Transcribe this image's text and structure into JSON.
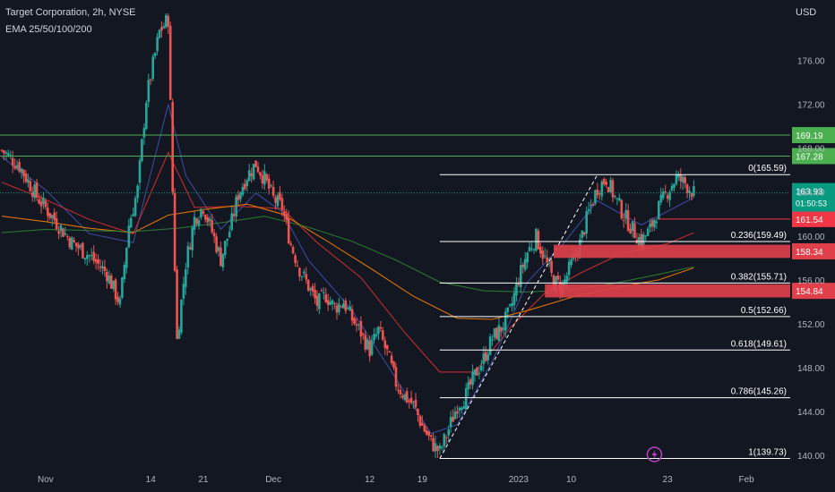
{
  "header": {
    "title": "Target Corporation, 2h, NYSE",
    "indicator": "EMA 25/50/100/200",
    "currency": "USD"
  },
  "chart_data": {
    "type": "candlestick",
    "y_ticks": [
      "176.00",
      "172.00",
      "168.00",
      "164.00",
      "160.00",
      "156.00",
      "152.00",
      "148.00",
      "144.00",
      "140.00"
    ],
    "ylim": [
      139.2,
      181.5
    ],
    "x_ticks": [
      {
        "label": "Nov",
        "t": 10
      },
      {
        "label": "14",
        "t": 34
      },
      {
        "label": "21",
        "t": 46
      },
      {
        "label": "Dec",
        "t": 62
      },
      {
        "label": "12",
        "t": 84
      },
      {
        "label": "19",
        "t": 96
      },
      {
        "label": "2023",
        "t": 118
      },
      {
        "label": "10",
        "t": 130
      },
      {
        "label": "23",
        "t": 152
      },
      {
        "label": "Feb",
        "t": 170
      }
    ],
    "ohlc_key_closes": [
      {
        "t": 0,
        "price": 167.8
      },
      {
        "t": 4,
        "price": 166.4
      },
      {
        "t": 8,
        "price": 163.6
      },
      {
        "t": 12,
        "price": 161.5
      },
      {
        "t": 16,
        "price": 159.4
      },
      {
        "t": 20,
        "price": 158.2
      },
      {
        "t": 24,
        "price": 156.6
      },
      {
        "t": 27,
        "price": 153.8
      },
      {
        "t": 29,
        "price": 161.0
      },
      {
        "t": 31,
        "price": 164.2
      },
      {
        "t": 33,
        "price": 172.5
      },
      {
        "t": 34,
        "price": 174.6
      },
      {
        "t": 36,
        "price": 178.6
      },
      {
        "t": 38,
        "price": 179.8
      },
      {
        "t": 39,
        "price": 164.0
      },
      {
        "t": 40,
        "price": 150.5
      },
      {
        "t": 42,
        "price": 157.5
      },
      {
        "t": 44,
        "price": 161.6
      },
      {
        "t": 46,
        "price": 162.7
      },
      {
        "t": 48,
        "price": 160.4
      },
      {
        "t": 50,
        "price": 157.9
      },
      {
        "t": 52,
        "price": 160.5
      },
      {
        "t": 54,
        "price": 163.8
      },
      {
        "t": 56,
        "price": 165.5
      },
      {
        "t": 58,
        "price": 166.6
      },
      {
        "t": 60,
        "price": 165.2
      },
      {
        "t": 62,
        "price": 163.4
      },
      {
        "t": 64,
        "price": 162.6
      },
      {
        "t": 66,
        "price": 159.2
      },
      {
        "t": 68,
        "price": 157.0
      },
      {
        "t": 70,
        "price": 155.4
      },
      {
        "t": 72,
        "price": 153.8
      },
      {
        "t": 74,
        "price": 154.6
      },
      {
        "t": 76,
        "price": 153.5
      },
      {
        "t": 78,
        "price": 154.0
      },
      {
        "t": 80,
        "price": 152.4
      },
      {
        "t": 82,
        "price": 151.2
      },
      {
        "t": 84,
        "price": 149.6
      },
      {
        "t": 86,
        "price": 151.4
      },
      {
        "t": 88,
        "price": 149.3
      },
      {
        "t": 90,
        "price": 146.6
      },
      {
        "t": 92,
        "price": 145.4
      },
      {
        "t": 94,
        "price": 144.6
      },
      {
        "t": 96,
        "price": 142.7
      },
      {
        "t": 98,
        "price": 141.2
      },
      {
        "t": 100,
        "price": 140.3
      },
      {
        "t": 102,
        "price": 142.4
      },
      {
        "t": 104,
        "price": 144.6
      },
      {
        "t": 106,
        "price": 145.5
      },
      {
        "t": 108,
        "price": 147.3
      },
      {
        "t": 110,
        "price": 148.8
      },
      {
        "t": 112,
        "price": 150.7
      },
      {
        "t": 114,
        "price": 151.6
      },
      {
        "t": 116,
        "price": 153.1
      },
      {
        "t": 118,
        "price": 156.1
      },
      {
        "t": 120,
        "price": 158.5
      },
      {
        "t": 122,
        "price": 159.9
      },
      {
        "t": 124,
        "price": 157.9
      },
      {
        "t": 126,
        "price": 155.8
      },
      {
        "t": 128,
        "price": 155.4
      },
      {
        "t": 130,
        "price": 157.4
      },
      {
        "t": 132,
        "price": 159.3
      },
      {
        "t": 134,
        "price": 162.2
      },
      {
        "t": 136,
        "price": 164.4
      },
      {
        "t": 138,
        "price": 165.2
      },
      {
        "t": 140,
        "price": 163.5
      },
      {
        "t": 142,
        "price": 161.9
      },
      {
        "t": 144,
        "price": 160.6
      },
      {
        "t": 146,
        "price": 159.5
      },
      {
        "t": 148,
        "price": 160.6
      },
      {
        "t": 150,
        "price": 162.6
      },
      {
        "t": 152,
        "price": 164.1
      },
      {
        "t": 154,
        "price": 165.3
      },
      {
        "t": 156,
        "price": 164.8
      },
      {
        "t": 158,
        "price": 163.9
      }
    ],
    "ema_series": [
      {
        "color": "#3f4ea8",
        "values": [
          [
            0,
            167.2
          ],
          [
            10,
            164.2
          ],
          [
            20,
            160.2
          ],
          [
            30,
            159.4
          ],
          [
            38,
            172.0
          ],
          [
            42,
            165.5
          ],
          [
            50,
            160.6
          ],
          [
            58,
            163.9
          ],
          [
            64,
            162.2
          ],
          [
            70,
            157.8
          ],
          [
            80,
            153.2
          ],
          [
            90,
            147.0
          ],
          [
            98,
            142.0
          ],
          [
            104,
            142.8
          ],
          [
            112,
            148.6
          ],
          [
            120,
            155.8
          ],
          [
            128,
            159.2
          ],
          [
            136,
            163.2
          ],
          [
            146,
            161.0
          ],
          [
            158,
            163.5
          ]
        ]
      },
      {
        "color": "#d32f2f",
        "values": [
          [
            0,
            164.9
          ],
          [
            10,
            163.3
          ],
          [
            20,
            161.5
          ],
          [
            30,
            160.2
          ],
          [
            38,
            167.6
          ],
          [
            44,
            162.6
          ],
          [
            54,
            162.7
          ],
          [
            64,
            162.5
          ],
          [
            72,
            159.4
          ],
          [
            82,
            156.2
          ],
          [
            92,
            151.2
          ],
          [
            100,
            147.6
          ],
          [
            108,
            147.6
          ],
          [
            116,
            151.6
          ],
          [
            124,
            154.8
          ],
          [
            132,
            156.6
          ],
          [
            142,
            158.5
          ],
          [
            152,
            159.3
          ],
          [
            158,
            160.3
          ]
        ]
      },
      {
        "color": "#f57c00",
        "values": [
          [
            0,
            161.8
          ],
          [
            10,
            161.3
          ],
          [
            20,
            160.7
          ],
          [
            30,
            160.3
          ],
          [
            38,
            161.9
          ],
          [
            46,
            162.4
          ],
          [
            56,
            162.9
          ],
          [
            64,
            162.0
          ],
          [
            74,
            159.6
          ],
          [
            84,
            157.1
          ],
          [
            94,
            154.5
          ],
          [
            104,
            152.5
          ],
          [
            112,
            152.4
          ],
          [
            120,
            153.2
          ],
          [
            130,
            154.4
          ],
          [
            140,
            155.3
          ],
          [
            150,
            156.0
          ],
          [
            158,
            157.1
          ]
        ]
      },
      {
        "color": "#2e7d32",
        "values": [
          [
            0,
            160.3
          ],
          [
            10,
            160.6
          ],
          [
            20,
            160.5
          ],
          [
            30,
            160.4
          ],
          [
            40,
            160.7
          ],
          [
            50,
            161.2
          ],
          [
            60,
            161.8
          ],
          [
            70,
            160.8
          ],
          [
            80,
            159.5
          ],
          [
            90,
            157.8
          ],
          [
            100,
            155.8
          ],
          [
            110,
            155.0
          ],
          [
            120,
            154.9
          ],
          [
            130,
            155.1
          ],
          [
            140,
            155.7
          ],
          [
            150,
            156.5
          ],
          [
            158,
            157.2
          ]
        ]
      }
    ],
    "horizontal_lines": [
      {
        "price": 169.19,
        "color": "#4caf50",
        "label": "169.19"
      },
      {
        "price": 167.28,
        "color": "#4caf50",
        "label": "167.28"
      }
    ],
    "fib_levels": [
      {
        "label": "0(165.59)",
        "price": 165.59
      },
      {
        "label": "0.236(159.49)",
        "price": 159.49
      },
      {
        "label": "0.382(155.71)",
        "price": 155.71
      },
      {
        "label": "0.5(152.66)",
        "price": 152.66
      },
      {
        "label": "0.618(149.61)",
        "price": 149.61
      },
      {
        "label": "0.786(145.26)",
        "price": 145.26
      },
      {
        "label": "1(139.73)",
        "price": 139.73
      }
    ],
    "fib_range": {
      "t_start": 100,
      "t_end": 148
    },
    "trend_line": {
      "t0": 100,
      "p0": 139.73,
      "t1": 136,
      "p1": 165.59
    },
    "zones": [
      {
        "t_start": 126,
        "p_top": 159.2,
        "p_bottom": 158.0,
        "color": "#e0404a",
        "label": "158.34"
      },
      {
        "t_start": 124,
        "p_top": 155.6,
        "p_bottom": 154.4,
        "color": "#e0404a",
        "label": "154.84"
      }
    ],
    "resistance_line": {
      "t_start": 150,
      "price": 161.54,
      "color": "#f23645",
      "label": "161.54"
    },
    "last_price": {
      "price": 163.93,
      "label": "163.93",
      "timer": "01:50:53",
      "color": "#089981"
    },
    "colors": {
      "up": "#26a69a",
      "down": "#ef5350",
      "grid": "#1e222d",
      "text": "#b2b5be",
      "fib": "#ffffff"
    }
  }
}
